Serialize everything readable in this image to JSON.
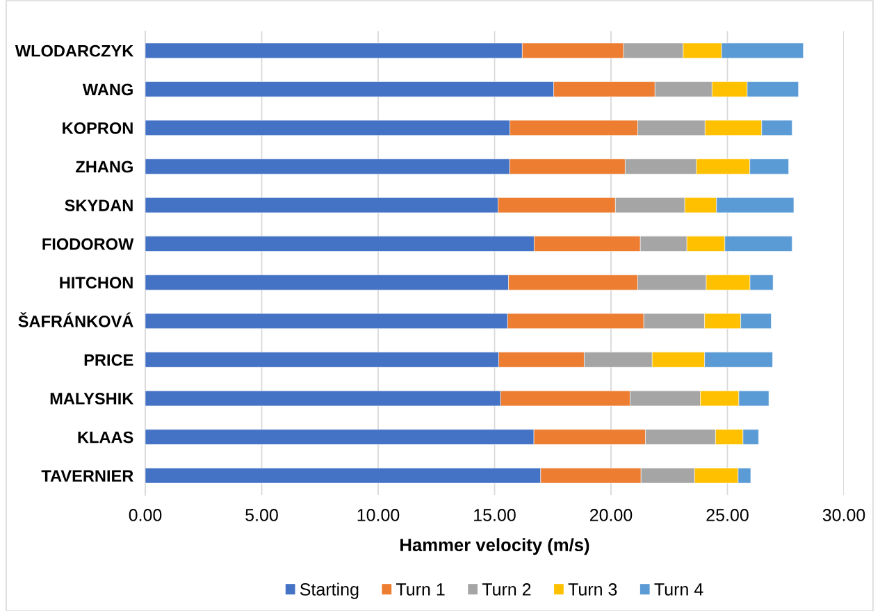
{
  "chart_data": {
    "type": "bar",
    "orientation": "horizontal",
    "stacked": true,
    "xlabel": "Hammer velocity (m/s)",
    "categories": [
      "WLODARCZYK",
      "WANG",
      "KOPRON",
      "ZHANG",
      "SKYDAN",
      "FIODOROW",
      "HITCHON",
      "ŠAFRÁNKOVÁ",
      "PRICE",
      "MALYSHIK",
      "KLAAS",
      "TAVERNIER"
    ],
    "series": [
      {
        "name": "Starting",
        "color": "#4472c4",
        "values": [
          16.19,
          17.54,
          15.66,
          15.65,
          15.15,
          16.7,
          15.6,
          15.56,
          15.18,
          15.26,
          16.69,
          16.98
        ]
      },
      {
        "name": "Turn 1",
        "color": "#ed7d31",
        "values": [
          4.35,
          4.35,
          5.49,
          4.96,
          5.04,
          4.56,
          5.55,
          5.85,
          3.67,
          5.56,
          4.79,
          4.31
        ]
      },
      {
        "name": "Turn 2",
        "color": "#a5a5a5",
        "values": [
          2.56,
          2.45,
          2.89,
          3.06,
          2.98,
          2.0,
          2.94,
          2.61,
          2.92,
          3.02,
          3.01,
          2.3
        ]
      },
      {
        "name": "Turn 3",
        "color": "#ffc000",
        "values": [
          1.65,
          1.51,
          2.43,
          2.29,
          1.36,
          1.63,
          1.88,
          1.55,
          2.25,
          1.65,
          1.18,
          1.87
        ]
      },
      {
        "name": "Turn 4",
        "color": "#5b9bd5",
        "values": [
          3.51,
          2.2,
          1.31,
          1.67,
          3.32,
          2.89,
          0.99,
          1.31,
          2.92,
          1.29,
          0.67,
          0.54
        ]
      }
    ],
    "xlim": [
      0,
      30
    ],
    "xticks": [
      {
        "value": 0,
        "label": "0.00"
      },
      {
        "value": 5,
        "label": "5.00"
      },
      {
        "value": 10,
        "label": "10.00"
      },
      {
        "value": 15,
        "label": "15.00"
      },
      {
        "value": 20,
        "label": "20.00"
      },
      {
        "value": 25,
        "label": "25.00"
      },
      {
        "value": 30,
        "label": "30.00"
      }
    ],
    "grid": "x",
    "legend": "bottom"
  }
}
